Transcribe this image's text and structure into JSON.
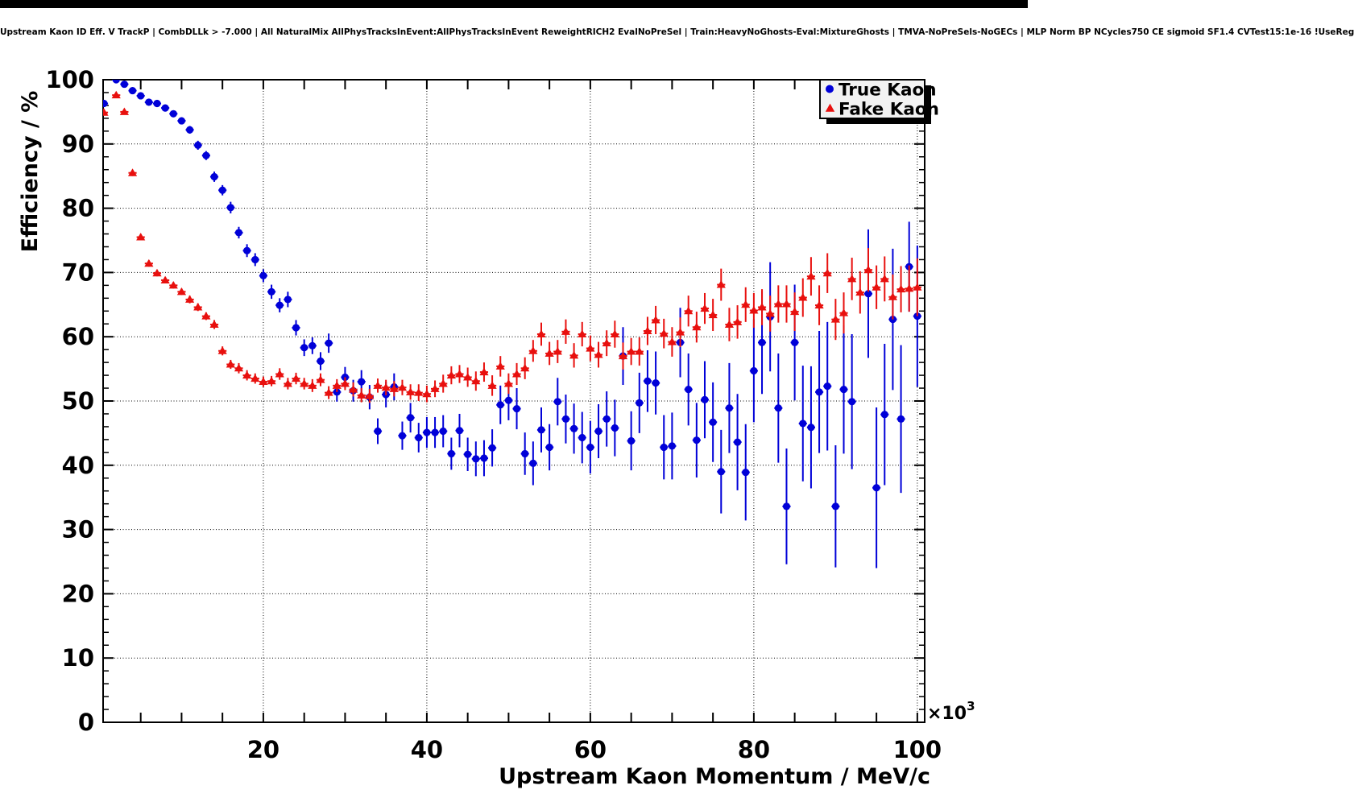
{
  "window": {
    "top_bar_color": "#000000",
    "background_color": "#ffffff"
  },
  "chart_data": {
    "type": "scatter",
    "title": "Upstream Kaon ID Eff. V TrackP | CombDLLk > -7.000 | All NaturalMix AllPhysTracksInEvent:AllPhysTracksInEvent ReweightRICH2 EvalNoPreSel | Train:HeavyNoGhosts-Eval:MixtureGhosts | TMVA-NoPreSels-NoGECs | MLP Norm BP NCycles750 CE sigmoid SF1.4 CVTest15:1e-16 !UseReg",
    "xlabel": "Upstream Kaon Momentum / MeV/c",
    "ylabel": "Efficiency / %",
    "x_axis_multiplier": "×10",
    "x_axis_multiplier_exponent": "3",
    "xlim": [
      0.4,
      100.9
    ],
    "ylim": [
      0,
      100
    ],
    "x_units_note": "x values are momentum in 1000 MeV/c",
    "x_major_tick_labels": [
      20,
      40,
      60,
      80,
      100
    ],
    "x_tick_step": 5,
    "y_tick_labels": [
      0,
      10,
      20,
      30,
      40,
      50,
      60,
      70,
      80,
      90,
      100
    ],
    "y_minor_tick_step": 2,
    "grid": {
      "style": "dotted",
      "vertical_at": [
        20,
        40,
        60,
        80,
        100
      ],
      "horizontal_at": [
        10,
        20,
        30,
        40,
        50,
        60,
        70,
        80,
        90
      ]
    },
    "legend": {
      "position": "top-right",
      "fill": "#f2f2f2",
      "border_color": "#000000",
      "shadow_color": "#000000",
      "entries": [
        {
          "label": "True Kaon",
          "marker": "circle",
          "color": "#0000d8"
        },
        {
          "label": "Fake Kaon",
          "marker": "triangle",
          "color": "#e8100e"
        }
      ]
    },
    "series": [
      {
        "name": "True Kaon",
        "marker": "circle",
        "color": "#0000d8",
        "x_half_width": 0.5,
        "points": [
          [
            0.5,
            96.3,
            0.4
          ],
          [
            2,
            100,
            0.25
          ],
          [
            3,
            99.3,
            0.3
          ],
          [
            4,
            98.3,
            0.35
          ],
          [
            5,
            97.5,
            0.4
          ],
          [
            6,
            96.5,
            0.4
          ],
          [
            7,
            96.3,
            0.45
          ],
          [
            8,
            95.6,
            0.5
          ],
          [
            9,
            94.7,
            0.5
          ],
          [
            10,
            93.6,
            0.55
          ],
          [
            11,
            92.2,
            0.6
          ],
          [
            12,
            89.8,
            0.7
          ],
          [
            13,
            88.2,
            0.7
          ],
          [
            14,
            84.9,
            0.8
          ],
          [
            15,
            82.8,
            0.8
          ],
          [
            16,
            80.1,
            0.9
          ],
          [
            17,
            76.2,
            0.9
          ],
          [
            18,
            73.4,
            1
          ],
          [
            19,
            72,
            1
          ],
          [
            20,
            69.5,
            1
          ],
          [
            21,
            67,
            1.1
          ],
          [
            22,
            64.9,
            1.1
          ],
          [
            23,
            65.8,
            1.2
          ],
          [
            24,
            61.4,
            1.2
          ],
          [
            25,
            58.3,
            1.3
          ],
          [
            26,
            58.6,
            1.3
          ],
          [
            27,
            56.2,
            1.4
          ],
          [
            28,
            59,
            1.5
          ],
          [
            29,
            51.4,
            1.5
          ],
          [
            30,
            53.7,
            1.6
          ],
          [
            31,
            51.6,
            1.7
          ],
          [
            32,
            53,
            1.8
          ],
          [
            33,
            50.6,
            1.9
          ],
          [
            34,
            45.3,
            2
          ],
          [
            35,
            51,
            2
          ],
          [
            36,
            52.2,
            2.1
          ],
          [
            37,
            44.6,
            2.2
          ],
          [
            38,
            47.4,
            2.3
          ],
          [
            39,
            44.3,
            2.3
          ],
          [
            40,
            45.1,
            2.4
          ],
          [
            41,
            45.1,
            2.4
          ],
          [
            42,
            45.3,
            2.5
          ],
          [
            43,
            41.8,
            2.5
          ],
          [
            44,
            45.4,
            2.6
          ],
          [
            45,
            41.7,
            2.6
          ],
          [
            46,
            41,
            2.7
          ],
          [
            47,
            41.1,
            2.8
          ],
          [
            48,
            42.7,
            2.9
          ],
          [
            49,
            49.4,
            3
          ],
          [
            50,
            50.1,
            3.1
          ],
          [
            51,
            48.8,
            3.2
          ],
          [
            52,
            41.8,
            3.3
          ],
          [
            53,
            40.3,
            3.4
          ],
          [
            54,
            45.5,
            3.5
          ],
          [
            55,
            42.8,
            3.6
          ],
          [
            56,
            49.9,
            3.7
          ],
          [
            57,
            47.2,
            3.8
          ],
          [
            58,
            45.7,
            3.9
          ],
          [
            59,
            44.3,
            4
          ],
          [
            60,
            42.8,
            4.1
          ],
          [
            61,
            45.3,
            4.2
          ],
          [
            62,
            47.2,
            4.3
          ],
          [
            63,
            45.8,
            4.4
          ],
          [
            64,
            57,
            4.5
          ],
          [
            65,
            43.8,
            4.6
          ],
          [
            66,
            49.7,
            4.7
          ],
          [
            67,
            53.1,
            4.8
          ],
          [
            68,
            52.8,
            4.9
          ],
          [
            69,
            42.8,
            5
          ],
          [
            70,
            43,
            5.2
          ],
          [
            71,
            59.1,
            5.4
          ],
          [
            72,
            51.8,
            5.6
          ],
          [
            73,
            43.9,
            5.8
          ],
          [
            74,
            50.2,
            6
          ],
          [
            75,
            46.7,
            6.2
          ],
          [
            76,
            39,
            6.5
          ],
          [
            77,
            48.9,
            7
          ],
          [
            78,
            43.6,
            7.5
          ],
          [
            79,
            38.9,
            7.5
          ],
          [
            80,
            54.7,
            8
          ],
          [
            81,
            59.1,
            8
          ],
          [
            82,
            63.1,
            8.5
          ],
          [
            83,
            48.9,
            8.5
          ],
          [
            84,
            33.6,
            9
          ],
          [
            85,
            59.1,
            9
          ],
          [
            86,
            46.5,
            9
          ],
          [
            87,
            45.9,
            9.5
          ],
          [
            88,
            51.4,
            9.5
          ],
          [
            89,
            52.3,
            10
          ],
          [
            90,
            33.6,
            9.5
          ],
          [
            91,
            51.8,
            10
          ],
          [
            92,
            49.9,
            10.5
          ],
          [
            94,
            66.7,
            10
          ],
          [
            95,
            36.5,
            12.5
          ],
          [
            96,
            47.9,
            11
          ],
          [
            97,
            62.7,
            11
          ],
          [
            98,
            47.2,
            11.5
          ],
          [
            99,
            70.9,
            7
          ],
          [
            100,
            63.2,
            11
          ]
        ]
      },
      {
        "name": "Fake Kaon",
        "marker": "triangle",
        "color": "#e8100e",
        "x_half_width": 0.5,
        "points": [
          [
            0.5,
            94.9,
            0.4
          ],
          [
            2,
            97.6,
            0.4
          ],
          [
            3,
            95,
            0.4
          ],
          [
            4,
            85.5,
            0.5
          ],
          [
            5,
            75.5,
            0.5
          ],
          [
            6,
            71.4,
            0.5
          ],
          [
            7,
            69.9,
            0.5
          ],
          [
            8,
            68.8,
            0.5
          ],
          [
            9,
            68,
            0.5
          ],
          [
            10,
            67,
            0.5
          ],
          [
            11,
            65.8,
            0.6
          ],
          [
            12,
            64.6,
            0.6
          ],
          [
            13,
            63.2,
            0.6
          ],
          [
            14,
            61.9,
            0.7
          ],
          [
            15,
            57.8,
            0.7
          ],
          [
            16,
            55.7,
            0.7
          ],
          [
            17,
            55.1,
            0.8
          ],
          [
            18,
            54,
            0.8
          ],
          [
            19,
            53.5,
            0.8
          ],
          [
            20,
            53,
            0.8
          ],
          [
            21,
            53.1,
            0.8
          ],
          [
            22,
            54.2,
            0.9
          ],
          [
            23,
            52.7,
            0.9
          ],
          [
            24,
            53.5,
            0.9
          ],
          [
            25,
            52.7,
            0.9
          ],
          [
            26,
            52.4,
            1
          ],
          [
            27,
            53.3,
            1
          ],
          [
            28,
            51.3,
            1
          ],
          [
            29,
            52.4,
            1
          ],
          [
            30,
            52.7,
            1
          ],
          [
            31,
            51.8,
            1.1
          ],
          [
            32,
            50.9,
            1.1
          ],
          [
            33,
            50.8,
            1.1
          ],
          [
            34,
            52.4,
            1.1
          ],
          [
            35,
            52.1,
            1.2
          ],
          [
            36,
            51.9,
            1.2
          ],
          [
            37,
            52.1,
            1.2
          ],
          [
            38,
            51.4,
            1.2
          ],
          [
            39,
            51.3,
            1.3
          ],
          [
            40,
            51.1,
            1.3
          ],
          [
            41,
            51.9,
            1.3
          ],
          [
            42,
            52.7,
            1.4
          ],
          [
            43,
            54,
            1.4
          ],
          [
            44,
            54.2,
            1.4
          ],
          [
            45,
            53.7,
            1.5
          ],
          [
            46,
            53.1,
            1.5
          ],
          [
            47,
            54.5,
            1.5
          ],
          [
            48,
            52.4,
            1.6
          ],
          [
            49,
            55.4,
            1.6
          ],
          [
            50,
            52.7,
            1.6
          ],
          [
            51,
            54.2,
            1.7
          ],
          [
            52,
            55.1,
            1.7
          ],
          [
            53,
            57.8,
            1.7
          ],
          [
            54,
            60.4,
            1.8
          ],
          [
            55,
            57.4,
            1.8
          ],
          [
            56,
            57.7,
            1.8
          ],
          [
            57,
            60.8,
            1.9
          ],
          [
            58,
            57.1,
            1.9
          ],
          [
            59,
            60.4,
            1.9
          ],
          [
            60,
            58.2,
            2
          ],
          [
            61,
            57.2,
            2
          ],
          [
            62,
            59,
            2
          ],
          [
            63,
            60.4,
            2.1
          ],
          [
            64,
            57,
            2.1
          ],
          [
            65,
            57.7,
            2.1
          ],
          [
            66,
            57.7,
            2.2
          ],
          [
            67,
            60.9,
            2.2
          ],
          [
            68,
            62.6,
            2.2
          ],
          [
            69,
            60.5,
            2.3
          ],
          [
            70,
            59.2,
            2.3
          ],
          [
            71,
            60.7,
            2.3
          ],
          [
            72,
            64,
            2.4
          ],
          [
            73,
            61.5,
            2.4
          ],
          [
            74,
            64.4,
            2.4
          ],
          [
            75,
            63.4,
            2.5
          ],
          [
            76,
            68.1,
            2.5
          ],
          [
            77,
            61.9,
            2.6
          ],
          [
            78,
            62.3,
            2.6
          ],
          [
            79,
            65,
            2.7
          ],
          [
            80,
            64.1,
            2.7
          ],
          [
            81,
            64.6,
            2.8
          ],
          [
            82,
            63.6,
            2.8
          ],
          [
            83,
            65.1,
            2.9
          ],
          [
            84,
            65.1,
            2.9
          ],
          [
            85,
            63.9,
            3
          ],
          [
            86,
            66.1,
            3
          ],
          [
            87,
            69.4,
            3
          ],
          [
            88,
            64.9,
            3.1
          ],
          [
            89,
            69.9,
            3.1
          ],
          [
            90,
            62.7,
            3.2
          ],
          [
            91,
            63.7,
            3.2
          ],
          [
            92,
            69,
            3.3
          ],
          [
            93,
            66.9,
            3.3
          ],
          [
            94,
            70.4,
            3.4
          ],
          [
            95,
            67.7,
            3.4
          ],
          [
            96,
            69,
            3.5
          ],
          [
            97,
            66.2,
            3.5
          ],
          [
            98,
            67.4,
            3.6
          ],
          [
            99,
            67.5,
            3.6
          ],
          [
            100,
            67.7,
            4.5
          ]
        ]
      }
    ]
  }
}
